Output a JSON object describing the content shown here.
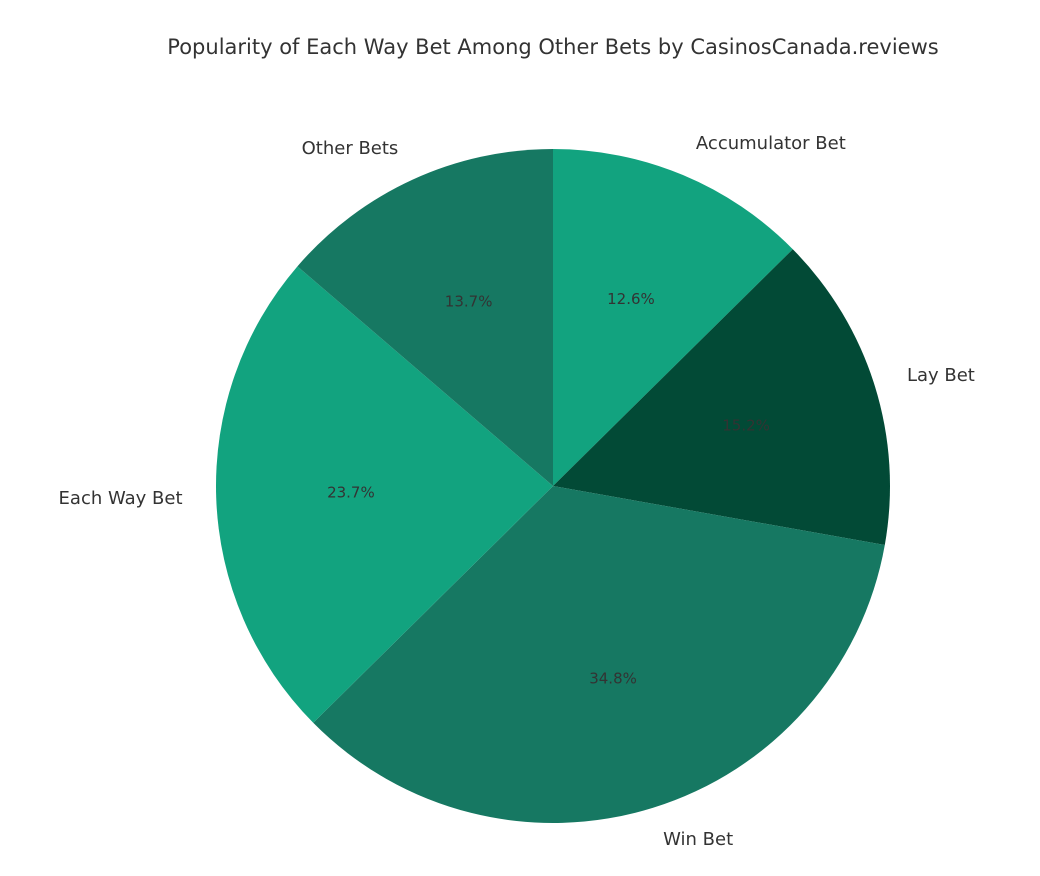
{
  "chart_data": {
    "type": "pie",
    "title": "Popularity of Each Way Bet Among Other Bets by CasinosCanada.reviews",
    "categories": [
      "Accumulator Bet",
      "Lay Bet",
      "Win Bet",
      "Each Way Bet",
      "Other Bets"
    ],
    "values": [
      12.6,
      15.2,
      34.8,
      23.7,
      13.7
    ],
    "value_labels": [
      "12.6%",
      "15.2%",
      "34.8%",
      "23.7%",
      "13.7%"
    ],
    "colors": [
      "#12a37f",
      "#024a36",
      "#167862",
      "#12a37f",
      "#167862"
    ]
  }
}
